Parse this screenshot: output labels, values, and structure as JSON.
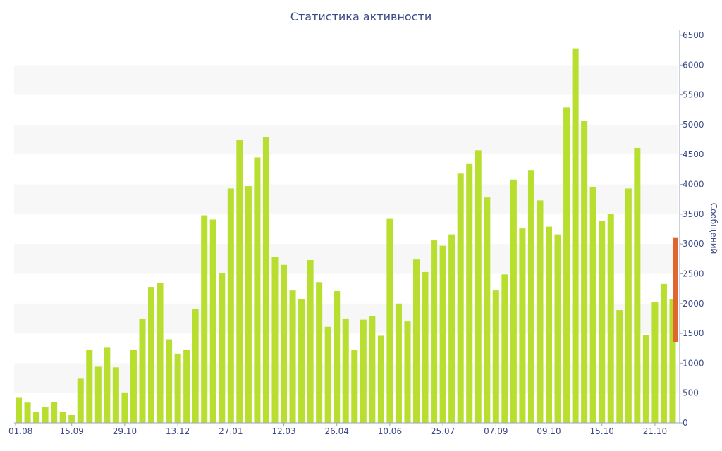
{
  "chart_data": {
    "type": "bar",
    "title": "Статистика активности",
    "xlabel": "",
    "ylabel": "Сообщений",
    "ylim": [
      0,
      6500
    ],
    "y_ticks": [
      0,
      500,
      1000,
      1500,
      2000,
      2500,
      3000,
      3500,
      4000,
      4500,
      5000,
      5500,
      6000,
      6500
    ],
    "x_tick_labels": [
      "01.08",
      "15.09",
      "29.10",
      "13.12",
      "27.01",
      "12.03",
      "26.04",
      "10.06",
      "25.07",
      "07.09",
      "09.10",
      "15.10",
      "21.10"
    ],
    "grid": "horizontal alternating bands",
    "colors": {
      "bar": "#b8de2f",
      "highlight": "#e0662e",
      "text": "#3d4a86",
      "band": "#f7f7f7"
    },
    "values": [
      420,
      340,
      180,
      260,
      350,
      180,
      130,
      740,
      1230,
      940,
      1260,
      930,
      510,
      1220,
      1750,
      2280,
      2340,
      1400,
      1160,
      1220,
      1910,
      3480,
      3410,
      2510,
      3930,
      4740,
      3970,
      4450,
      4790,
      2780,
      2650,
      2220,
      2070,
      2730,
      2360,
      1610,
      2210,
      1750,
      1230,
      1730,
      1790,
      1460,
      3420,
      2000,
      1700,
      2740,
      2530,
      3060,
      2970,
      3160,
      4180,
      4340,
      4570,
      3780,
      2220,
      2490,
      4080,
      3260,
      4240,
      3730,
      3290,
      3160,
      5290,
      6280,
      5060,
      3950,
      3390,
      3500,
      1890,
      3930,
      4610,
      1470,
      2020,
      2330,
      2080
    ],
    "highlight_range": [
      1350,
      3100
    ]
  }
}
